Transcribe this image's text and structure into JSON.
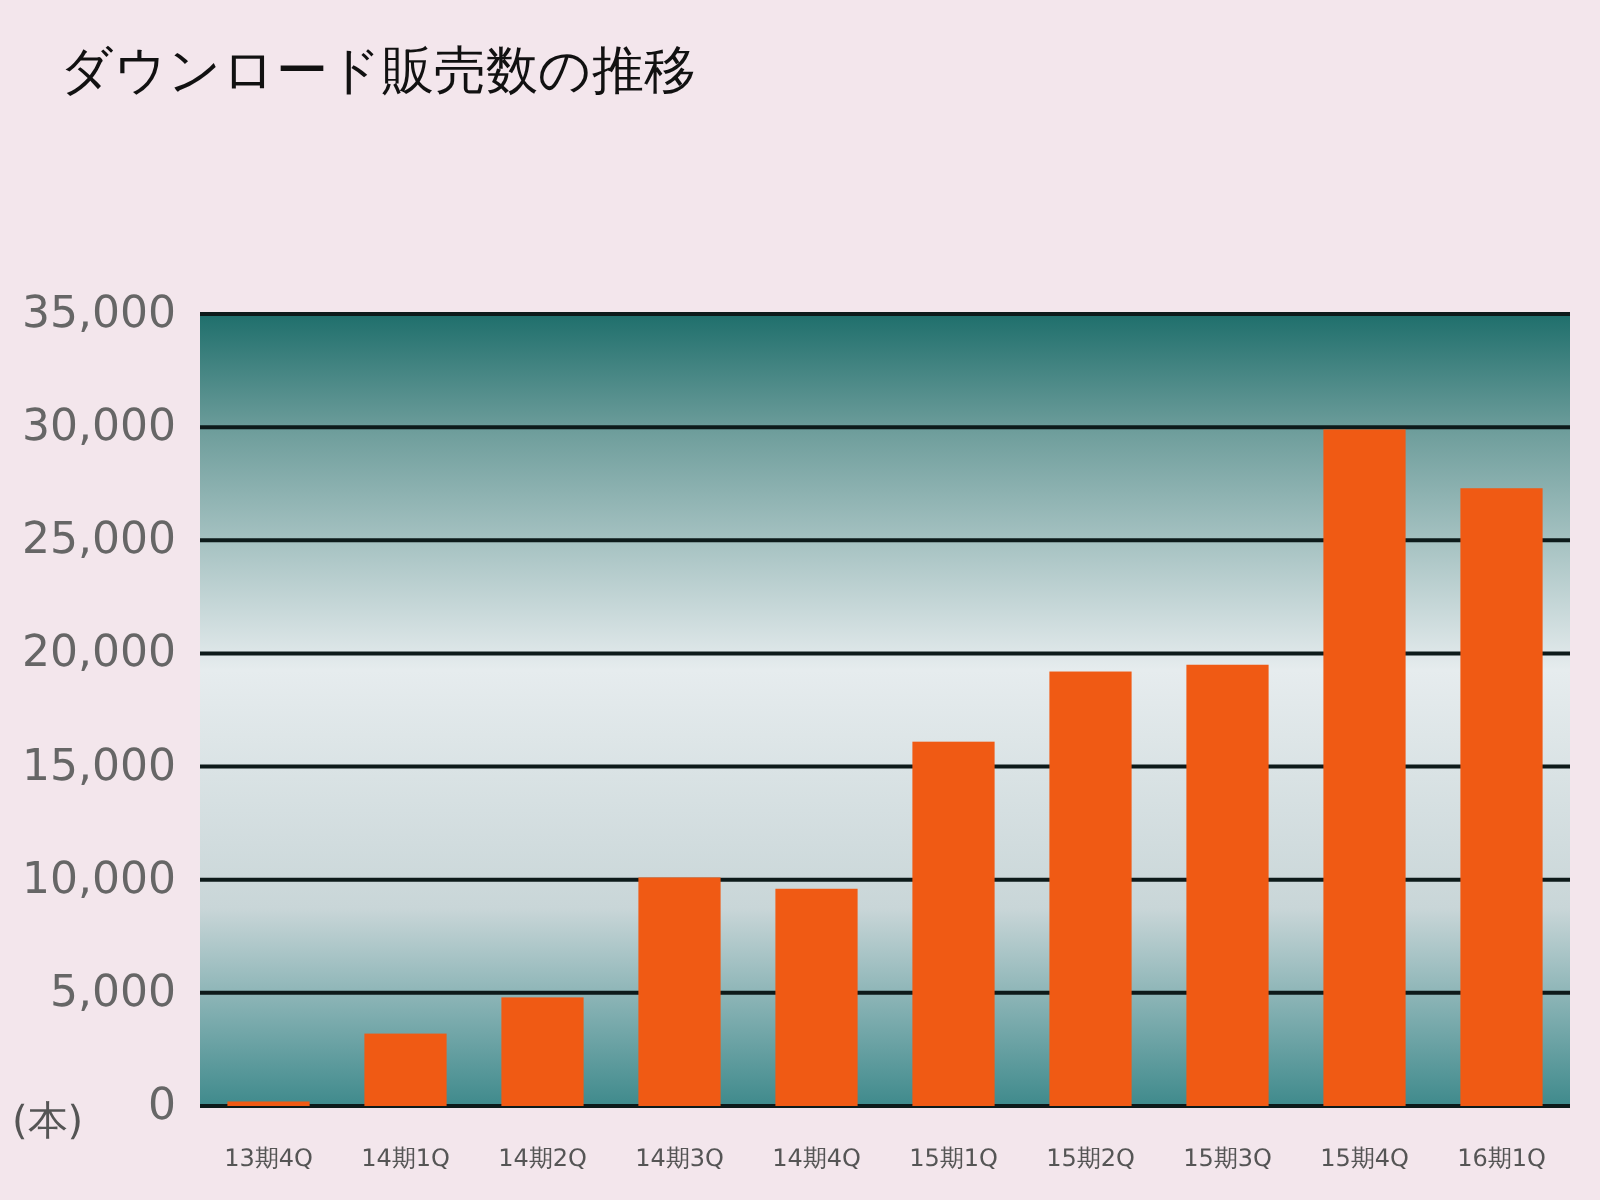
{
  "chart_data": {
    "type": "bar",
    "title": "ダウンロード販売数の推移",
    "ylabel": "(本)",
    "categories": [
      "13期4Q",
      "14期1Q",
      "14期2Q",
      "14期3Q",
      "14期4Q",
      "15期1Q",
      "15期2Q",
      "15期3Q",
      "15期4Q",
      "16期1Q"
    ],
    "values": [
      200,
      3200,
      4800,
      10100,
      9600,
      16100,
      19200,
      19500,
      29900,
      27300
    ],
    "color": "#f05a14",
    "ylim": [
      0,
      35000
    ],
    "yticks": [
      0,
      {
        "value": 5000,
        "label": "5,000"
      },
      {
        "value": 10000,
        "label": "10,000"
      },
      {
        "value": 15000,
        "label": "15,000"
      },
      {
        "value": 20000,
        "label": "20,000"
      },
      {
        "value": 25000,
        "label": "25,000"
      },
      {
        "value": 30000,
        "label": "30,000"
      },
      {
        "value": 35000,
        "label": "35,000"
      }
    ],
    "grid": "y"
  }
}
